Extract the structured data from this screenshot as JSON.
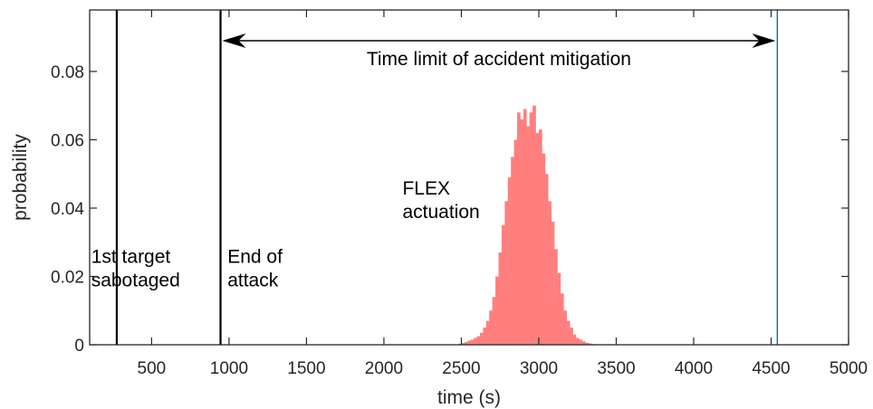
{
  "chart_data": {
    "type": "bar",
    "xlabel": "time (s)",
    "ylabel": "probability",
    "xlim": [
      100,
      5000
    ],
    "ylim": [
      0,
      0.098
    ],
    "xticks": [
      500,
      1000,
      1500,
      2000,
      2500,
      3000,
      3500,
      4000,
      4500,
      5000
    ],
    "yticks": [
      0,
      0.02,
      0.04,
      0.06,
      0.08
    ],
    "ytick_labels": [
      "0",
      "0.02",
      "0.04",
      "0.06",
      "0.08"
    ],
    "grid": false,
    "bar_color": "#ff7f7f",
    "series": [
      {
        "bin_width": 20,
        "x": [
          2480,
          2500,
          2520,
          2540,
          2560,
          2580,
          2600,
          2620,
          2640,
          2660,
          2680,
          2700,
          2720,
          2740,
          2760,
          2780,
          2800,
          2820,
          2840,
          2860,
          2880,
          2900,
          2920,
          2940,
          2960,
          2980,
          3000,
          3020,
          3040,
          3060,
          3080,
          3100,
          3120,
          3140,
          3160,
          3180,
          3200,
          3220,
          3240,
          3260,
          3280,
          3300,
          3320,
          3340
        ],
        "values": [
          0.0003,
          0.0005,
          0.0008,
          0.0012,
          0.0015,
          0.002,
          0.0025,
          0.0035,
          0.005,
          0.007,
          0.01,
          0.014,
          0.02,
          0.027,
          0.035,
          0.042,
          0.049,
          0.055,
          0.06,
          0.068,
          0.066,
          0.069,
          0.064,
          0.068,
          0.07,
          0.062,
          0.063,
          0.056,
          0.05,
          0.042,
          0.036,
          0.028,
          0.021,
          0.015,
          0.01,
          0.007,
          0.005,
          0.003,
          0.002,
          0.0015,
          0.001,
          0.0006,
          0.0004,
          0.0002
        ]
      }
    ],
    "vertical_lines": [
      {
        "x": 275,
        "color": "#000000"
      },
      {
        "x": 945,
        "color": "#000000"
      },
      {
        "x": 4540,
        "color": "#0072bd"
      }
    ],
    "arrow": {
      "x_from": 945,
      "x_to": 4540,
      "y": 0.089,
      "label": "Time limit of accident mitigation"
    },
    "annotations": [
      {
        "lines": [
          "1st target",
          "sabotaged"
        ],
        "x": 110,
        "y": 0.024
      },
      {
        "lines": [
          "End of",
          "attack"
        ],
        "x": 990,
        "y": 0.024
      },
      {
        "lines": [
          "FLEX",
          "actuation"
        ],
        "x": 2120,
        "y": 0.044
      }
    ]
  }
}
